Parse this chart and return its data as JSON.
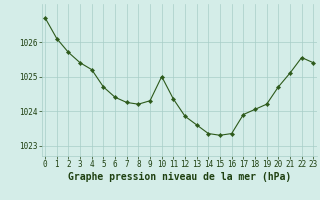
{
  "x": [
    0,
    1,
    2,
    3,
    4,
    5,
    6,
    7,
    8,
    9,
    10,
    11,
    12,
    13,
    14,
    15,
    16,
    17,
    18,
    19,
    20,
    21,
    22,
    23
  ],
  "y": [
    1026.7,
    1026.1,
    1025.7,
    1025.4,
    1025.2,
    1024.7,
    1024.4,
    1024.25,
    1024.2,
    1024.3,
    1025.0,
    1024.35,
    1023.85,
    1023.6,
    1023.35,
    1023.3,
    1023.35,
    1023.9,
    1024.05,
    1024.2,
    1024.7,
    1025.1,
    1025.55,
    1025.4
  ],
  "line_color": "#2d5a1b",
  "marker": "D",
  "marker_size": 2.2,
  "bg_color": "#d4ede8",
  "grid_color": "#a8cec7",
  "xlabel": "Graphe pression niveau de la mer (hPa)",
  "xlabel_fontsize": 7,
  "xlabel_color": "#1e4010",
  "tick_color": "#1e4010",
  "tick_fontsize": 5.5,
  "ylim": [
    1022.7,
    1027.1
  ],
  "yticks": [
    1023,
    1024,
    1025,
    1026
  ],
  "xticks": [
    0,
    1,
    2,
    3,
    4,
    5,
    6,
    7,
    8,
    9,
    10,
    11,
    12,
    13,
    14,
    15,
    16,
    17,
    18,
    19,
    20,
    21,
    22,
    23
  ],
  "xlim": [
    -0.3,
    23.3
  ]
}
